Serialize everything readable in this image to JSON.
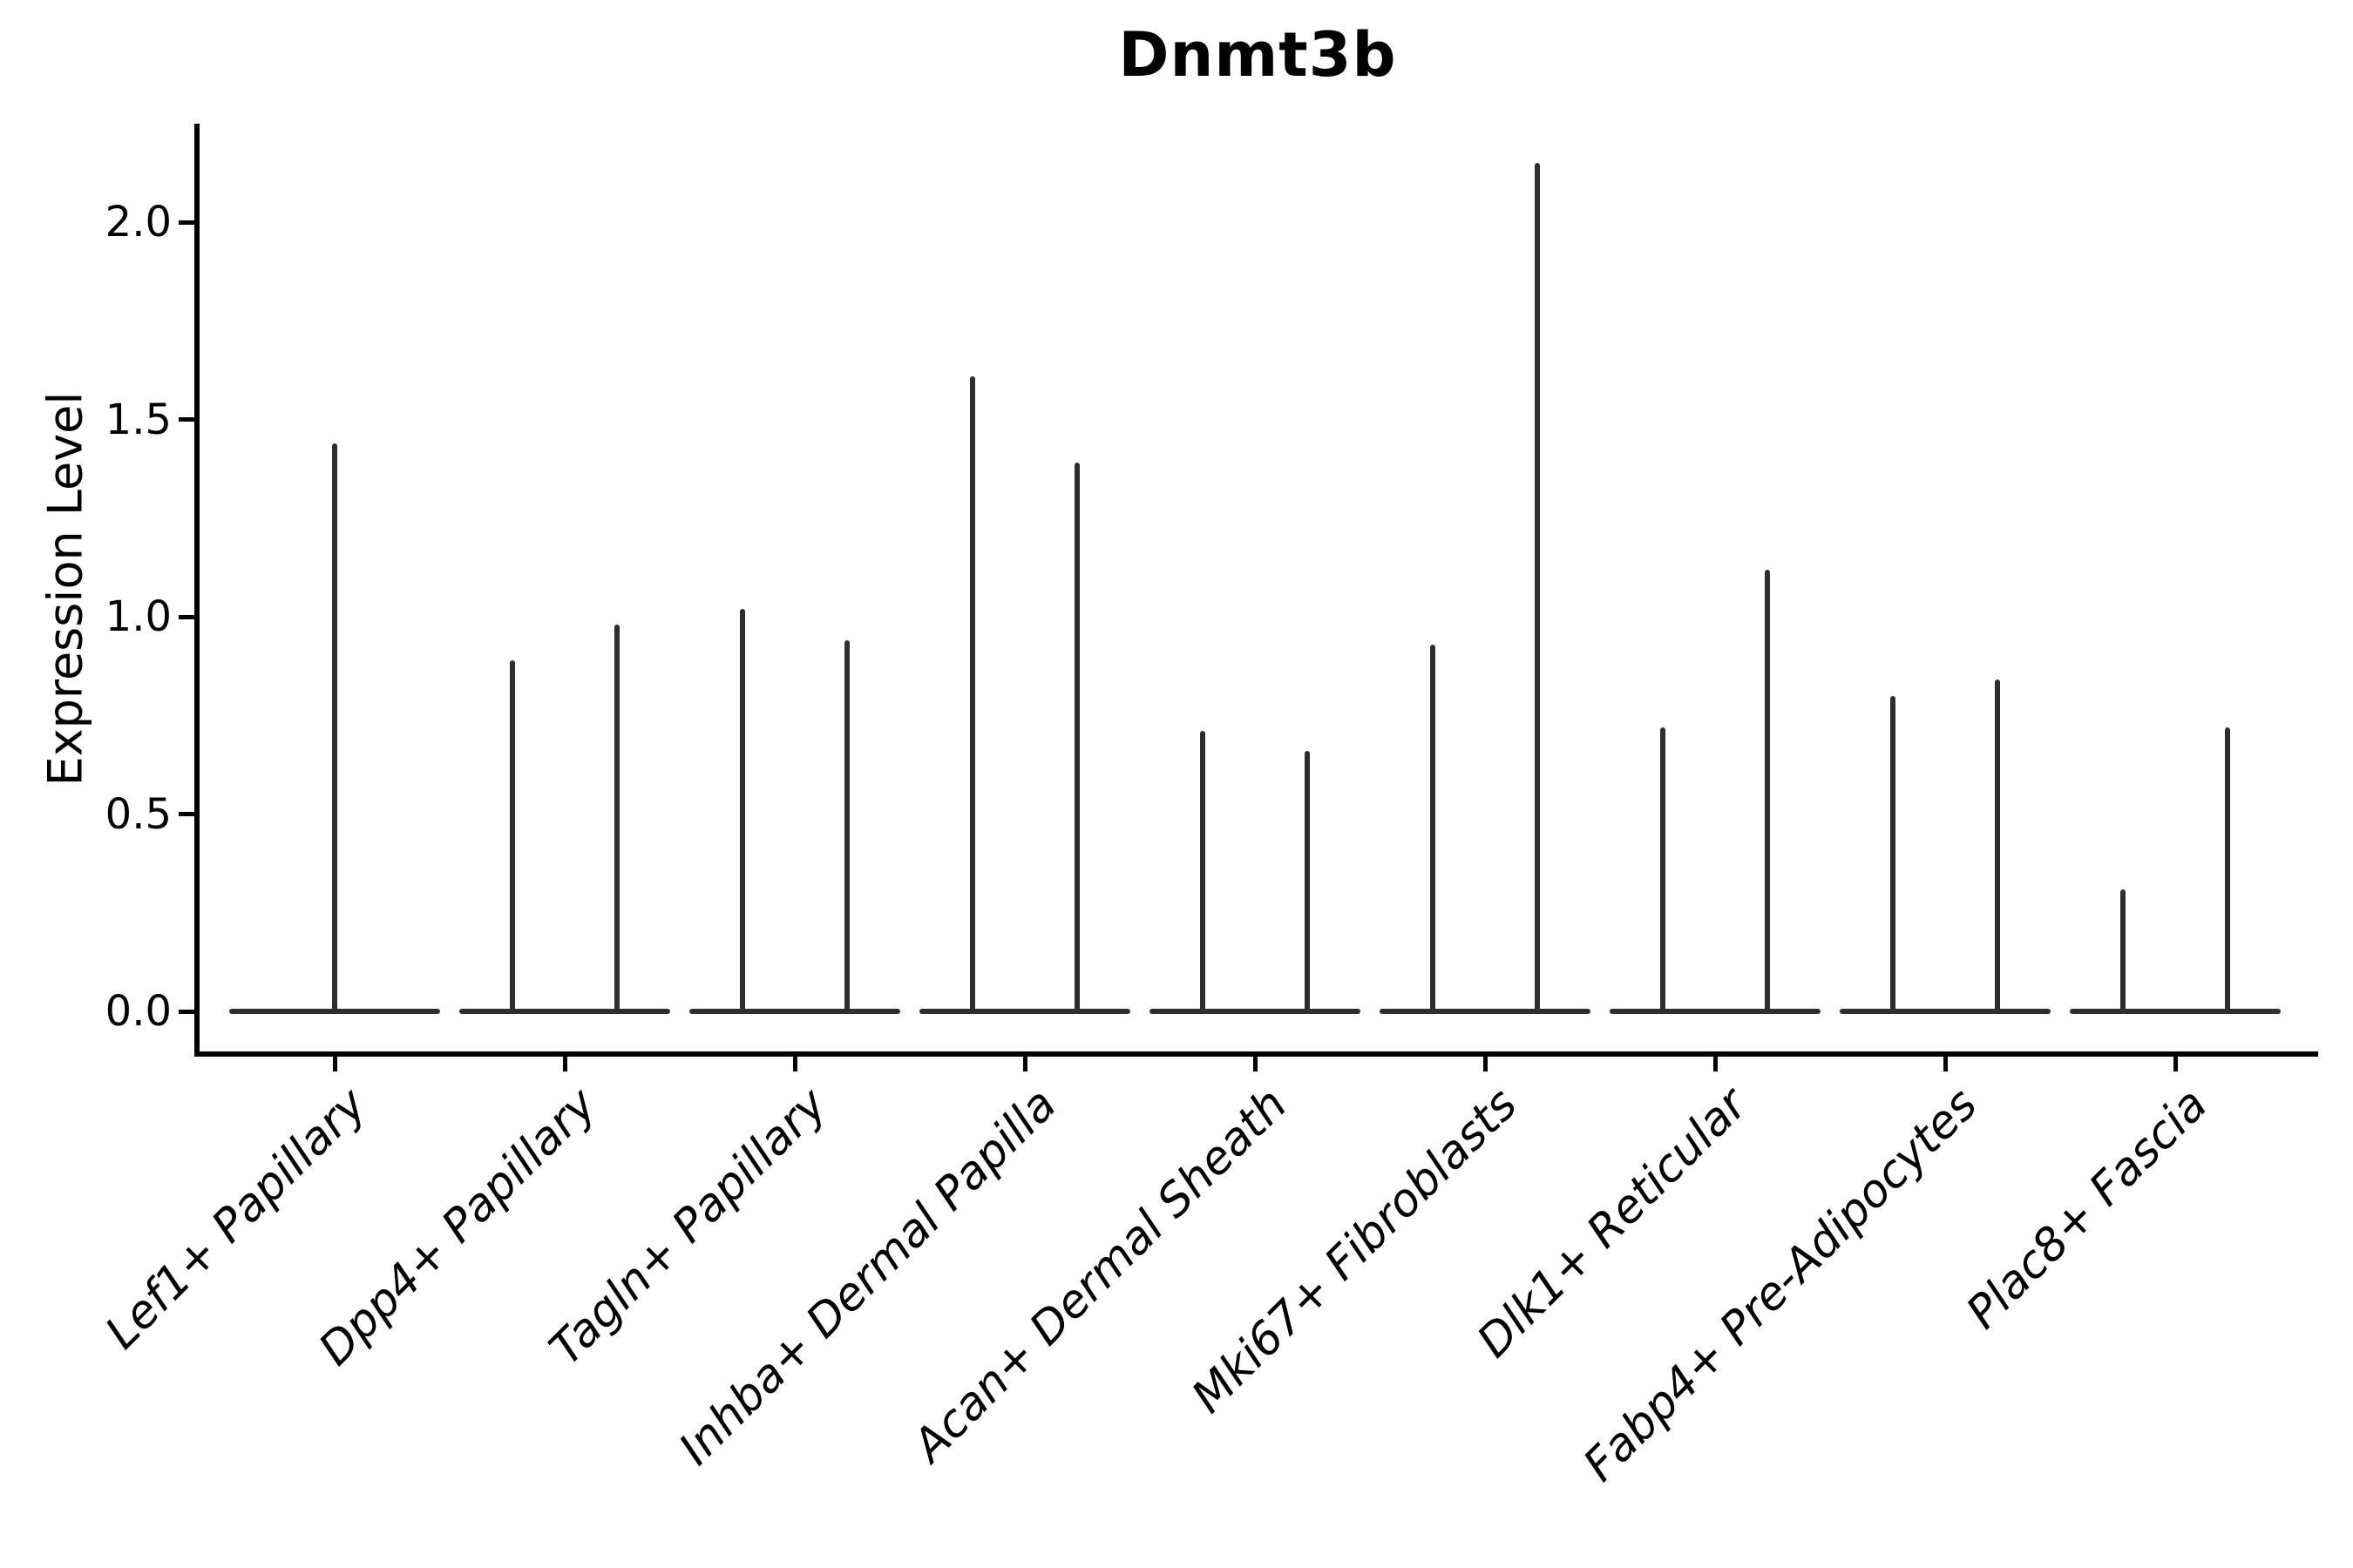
{
  "title": "Dnmt3b",
  "y_axis": {
    "label": "Expression Level",
    "tick_labels": [
      "0.0",
      "0.5",
      "1.0",
      "1.5",
      "2.0"
    ]
  },
  "colors": {
    "background": "#ffffff",
    "axis_ink": "#000000",
    "violin_ink": "#2e2e2e"
  },
  "chart_data": {
    "type": "violin",
    "title": "Dnmt3b",
    "xlabel": "",
    "ylabel": "Expression Level",
    "ylim": [
      0,
      2.25
    ],
    "yticks": [
      0.0,
      0.5,
      1.0,
      1.5,
      2.0
    ],
    "grid": false,
    "legend": false,
    "description": "Single-cell expression violin plot; each violin collapses to a flat baseline at 0 with a narrow spike whose tip marks the maximum expression level in that group. First category shows one centered spike; all other categories show two spikes.",
    "categories": [
      "Lef1+ Papillary",
      "Dpp4+ Papillary",
      "Tagln+ Papillary",
      "Inhba+ Dermal Papilla",
      "Acan+ Dermal Sheath",
      "Mki67+ Fibroblasts",
      "Dlk1+ Reticular",
      "Fabp4+ Pre-Adipocytes",
      "Plac8+ Fascia"
    ],
    "spike_max_values": [
      [
        1.44
      ],
      [
        0.89,
        0.98
      ],
      [
        1.02,
        0.94
      ],
      [
        1.61,
        1.39
      ],
      [
        0.71,
        0.66
      ],
      [
        0.93,
        2.15
      ],
      [
        0.72,
        1.12
      ],
      [
        0.8,
        0.84
      ],
      [
        0.31,
        0.72
      ]
    ]
  }
}
